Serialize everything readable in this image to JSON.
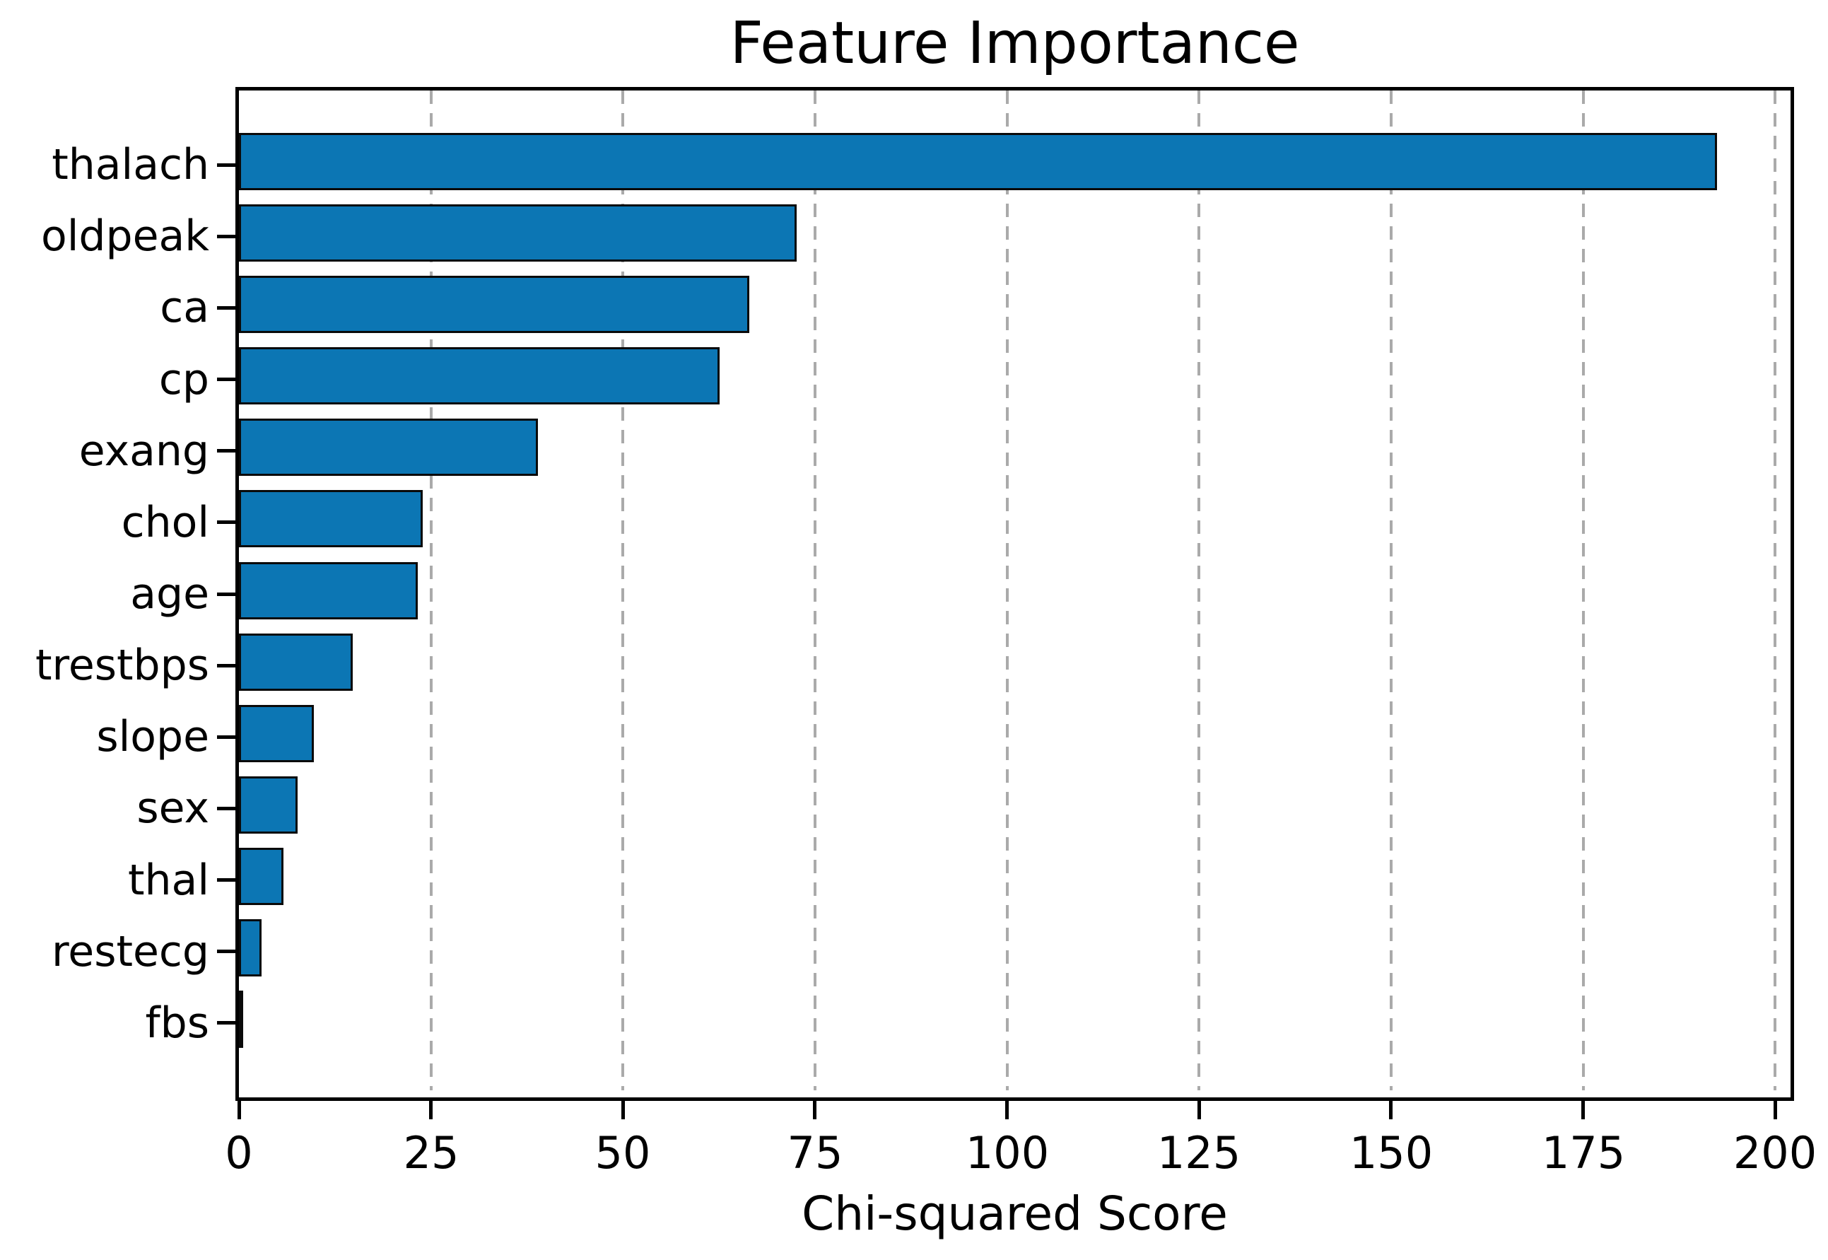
{
  "chart_data": {
    "type": "bar",
    "orientation": "horizontal",
    "title": "Feature Importance",
    "xlabel": "Chi-squared Score",
    "ylabel": "",
    "categories": [
      "thalach",
      "oldpeak",
      "ca",
      "cp",
      "exang",
      "chol",
      "age",
      "trestbps",
      "slope",
      "sex",
      "thal",
      "restecg",
      "fbs"
    ],
    "values": [
      192.4,
      72.6,
      66.4,
      62.6,
      38.9,
      23.9,
      23.3,
      14.8,
      9.8,
      7.6,
      5.8,
      2.9,
      0.2
    ],
    "xticks": [
      0,
      25,
      50,
      75,
      100,
      125,
      150,
      175,
      200
    ],
    "xtick_labels": [
      "0",
      "25",
      "50",
      "75",
      "100",
      "125",
      "150",
      "175",
      "200"
    ],
    "xlim": [
      0,
      202
    ],
    "grid": "vertical-dashed",
    "legend": "none",
    "colors": {
      "bar_fill": "#0c76b4",
      "bar_edge": "#0a0a0a",
      "gridline": "#aaaaaa",
      "spine": "#000000",
      "text": "#000000",
      "background": "#ffffff"
    }
  }
}
